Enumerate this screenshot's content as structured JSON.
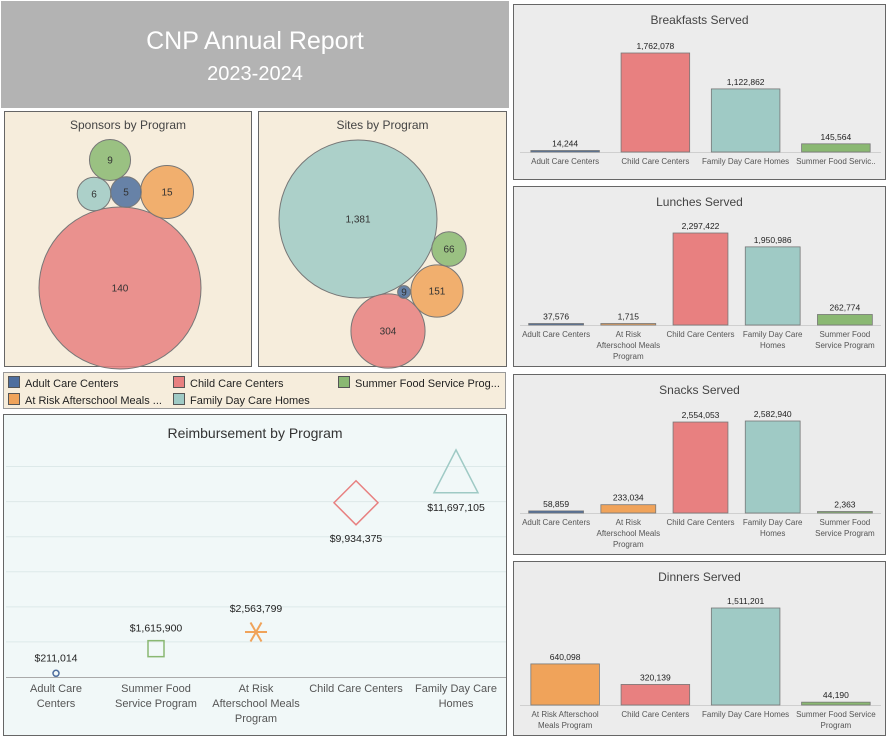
{
  "header": {
    "title": "CNP Annual Report",
    "subtitle": "2023-2024"
  },
  "colors": {
    "adult": "#4e6e9e",
    "atrisk": "#f0a35a",
    "child": "#e88080",
    "family": "#9fcac5",
    "summer": "#8ab872"
  },
  "legend": {
    "items": [
      {
        "key": "adult",
        "label": "Adult Care Centers"
      },
      {
        "key": "child",
        "label": "Child Care Centers"
      },
      {
        "key": "summer",
        "label": "Summer Food Service Prog..."
      },
      {
        "key": "atrisk",
        "label": "At Risk Afterschool Meals ..."
      },
      {
        "key": "family",
        "label": "Family Day Care Homes"
      }
    ]
  },
  "chart_data": [
    {
      "type": "bubble",
      "id": "sponsors",
      "title": "Sponsors by Program",
      "points": [
        {
          "program": "Child Care Centers",
          "key": "child",
          "value": 140,
          "label": "140"
        },
        {
          "program": "At Risk Afterschool Meals Program",
          "key": "atrisk",
          "value": 15,
          "label": "15"
        },
        {
          "program": "Summer Food Service Program",
          "key": "summer",
          "value": 9,
          "label": "9"
        },
        {
          "program": "Family Day Care Homes",
          "key": "family",
          "value": 6,
          "label": "6"
        },
        {
          "program": "Adult Care Centers",
          "key": "adult",
          "value": 5,
          "label": "5"
        }
      ]
    },
    {
      "type": "bubble",
      "id": "sites",
      "title": "Sites by Program",
      "points": [
        {
          "program": "Family Day Care Homes",
          "key": "family",
          "value": 1381,
          "label": "1,381"
        },
        {
          "program": "Child Care Centers",
          "key": "child",
          "value": 304,
          "label": "304"
        },
        {
          "program": "At Risk Afterschool Meals Program",
          "key": "atrisk",
          "value": 151,
          "label": "151"
        },
        {
          "program": "Summer Food Service Program",
          "key": "summer",
          "value": 66,
          "label": "66"
        },
        {
          "program": "Adult Care Centers",
          "key": "adult",
          "value": 9,
          "label": "9"
        }
      ]
    },
    {
      "type": "bar",
      "id": "breakfasts",
      "title": "Breakfasts Served",
      "bars": [
        {
          "category": [
            "Adult Care Centers"
          ],
          "key": "adult",
          "value": 14244,
          "label": "14,244"
        },
        {
          "category": [
            "Child Care Centers"
          ],
          "key": "child",
          "value": 1762078,
          "label": "1,762,078"
        },
        {
          "category": [
            "Family Day Care Homes"
          ],
          "key": "family",
          "value": 1122862,
          "label": "1,122,862"
        },
        {
          "category": [
            "Summer Food Servic.."
          ],
          "key": "summer",
          "value": 145564,
          "label": "145,564"
        }
      ]
    },
    {
      "type": "bar",
      "id": "lunches",
      "title": "Lunches Served",
      "bars": [
        {
          "category": [
            "Adult Care Centers"
          ],
          "key": "adult",
          "value": 37576,
          "label": "37,576"
        },
        {
          "category": [
            "At Risk",
            "Afterschool Meals",
            "Program"
          ],
          "key": "atrisk",
          "value": 1715,
          "label": "1,715"
        },
        {
          "category": [
            "Child Care Centers"
          ],
          "key": "child",
          "value": 2297422,
          "label": "2,297,422"
        },
        {
          "category": [
            "Family Day Care",
            "Homes"
          ],
          "key": "family",
          "value": 1950986,
          "label": "1,950,986"
        },
        {
          "category": [
            "Summer Food",
            "Service Program"
          ],
          "key": "summer",
          "value": 262774,
          "label": "262,774"
        }
      ]
    },
    {
      "type": "bar",
      "id": "snacks",
      "title": "Snacks Served",
      "bars": [
        {
          "category": [
            "Adult Care Centers"
          ],
          "key": "adult",
          "value": 58859,
          "label": "58,859"
        },
        {
          "category": [
            "At Risk",
            "Afterschool Meals",
            "Program"
          ],
          "key": "atrisk",
          "value": 233034,
          "label": "233,034"
        },
        {
          "category": [
            "Child Care Centers"
          ],
          "key": "child",
          "value": 2554053,
          "label": "2,554,053"
        },
        {
          "category": [
            "Family Day Care",
            "Homes"
          ],
          "key": "family",
          "value": 2582940,
          "label": "2,582,940"
        },
        {
          "category": [
            "Summer Food",
            "Service Program"
          ],
          "key": "summer",
          "value": 2363,
          "label": "2,363"
        }
      ]
    },
    {
      "type": "bar",
      "id": "dinners",
      "title": "Dinners Served",
      "bars": [
        {
          "category": [
            "At Risk Afterschool",
            "Meals Program"
          ],
          "key": "atrisk",
          "value": 640098,
          "label": "640,098"
        },
        {
          "category": [
            "Child Care Centers"
          ],
          "key": "child",
          "value": 320139,
          "label": "320,139"
        },
        {
          "category": [
            "Family Day Care Homes"
          ],
          "key": "family",
          "value": 1511201,
          "label": "1,511,201"
        },
        {
          "category": [
            "Summer Food Service",
            "Program"
          ],
          "key": "summer",
          "value": 44190,
          "label": "44,190"
        }
      ]
    },
    {
      "type": "scatter",
      "id": "reimbursement",
      "title": "Reimbursement by Program",
      "ylim": [
        0,
        13000000
      ],
      "points": [
        {
          "category": [
            "Adult Care",
            "Centers"
          ],
          "key": "adult",
          "shape": "circle",
          "value": 211014,
          "label": "$211,014"
        },
        {
          "category": [
            "Summer Food",
            "Service Program"
          ],
          "key": "summer",
          "shape": "square",
          "value": 1615900,
          "label": "$1,615,900"
        },
        {
          "category": [
            "At Risk",
            "Afterschool Meals",
            "Program"
          ],
          "key": "atrisk",
          "shape": "asterisk",
          "value": 2563799,
          "label": "$2,563,799"
        },
        {
          "category": [
            "Child Care Centers"
          ],
          "key": "child",
          "shape": "diamond",
          "value": 9934375,
          "label": "$9,934,375"
        },
        {
          "category": [
            "Family Day Care",
            "Homes"
          ],
          "key": "family",
          "shape": "triangle",
          "value": 11697105,
          "label": "$11,697,105"
        }
      ]
    }
  ]
}
